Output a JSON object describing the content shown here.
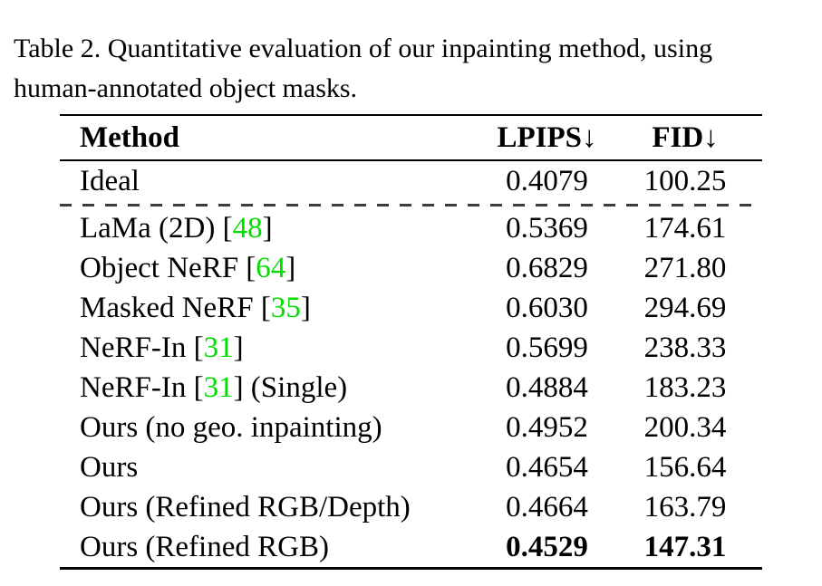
{
  "colors": {
    "citation_green": "#00dd00",
    "text": "#000000",
    "dash_gray": "#3c3c3c",
    "background": "#ffffff"
  },
  "caption": {
    "line1": "Table 2.  Quantitative evaluation of our inpainting method, using",
    "line2": "human-annotated object masks."
  },
  "table": {
    "headers": {
      "method": "Method",
      "lpips": "LPIPS",
      "fid": "FID",
      "down_arrow": "↓"
    },
    "rows": [
      {
        "method_pre": "Ideal",
        "cite": "",
        "method_post": "",
        "lpips": "0.4079",
        "fid": "100.25",
        "bold": false,
        "dashed_before": false
      },
      {
        "method_pre": "LaMa (2D) [",
        "cite": "48",
        "method_post": "]",
        "lpips": "0.5369",
        "fid": "174.61",
        "bold": false,
        "dashed_before": true
      },
      {
        "method_pre": "Object NeRF [",
        "cite": "64",
        "method_post": "]",
        "lpips": "0.6829",
        "fid": "271.80",
        "bold": false,
        "dashed_before": false
      },
      {
        "method_pre": "Masked NeRF [",
        "cite": "35",
        "method_post": "]",
        "lpips": "0.6030",
        "fid": "294.69",
        "bold": false,
        "dashed_before": false
      },
      {
        "method_pre": "NeRF-In [",
        "cite": "31",
        "method_post": "]",
        "lpips": "0.5699",
        "fid": "238.33",
        "bold": false,
        "dashed_before": false
      },
      {
        "method_pre": "NeRF-In [",
        "cite": "31",
        "method_post": "] (Single)",
        "lpips": "0.4884",
        "fid": "183.23",
        "bold": false,
        "dashed_before": false
      },
      {
        "method_pre": "Ours (no geo. inpainting)",
        "cite": "",
        "method_post": "",
        "lpips": "0.4952",
        "fid": "200.34",
        "bold": false,
        "dashed_before": false
      },
      {
        "method_pre": "Ours",
        "cite": "",
        "method_post": "",
        "lpips": "0.4654",
        "fid": "156.64",
        "bold": false,
        "dashed_before": false
      },
      {
        "method_pre": "Ours (Refined RGB/Depth)",
        "cite": "",
        "method_post": "",
        "lpips": "0.4664",
        "fid": "163.79",
        "bold": false,
        "dashed_before": false
      },
      {
        "method_pre": "Ours (Refined RGB)",
        "cite": "",
        "method_post": "",
        "lpips": "0.4529",
        "fid": "147.31",
        "bold": true,
        "dashed_before": false
      }
    ]
  }
}
